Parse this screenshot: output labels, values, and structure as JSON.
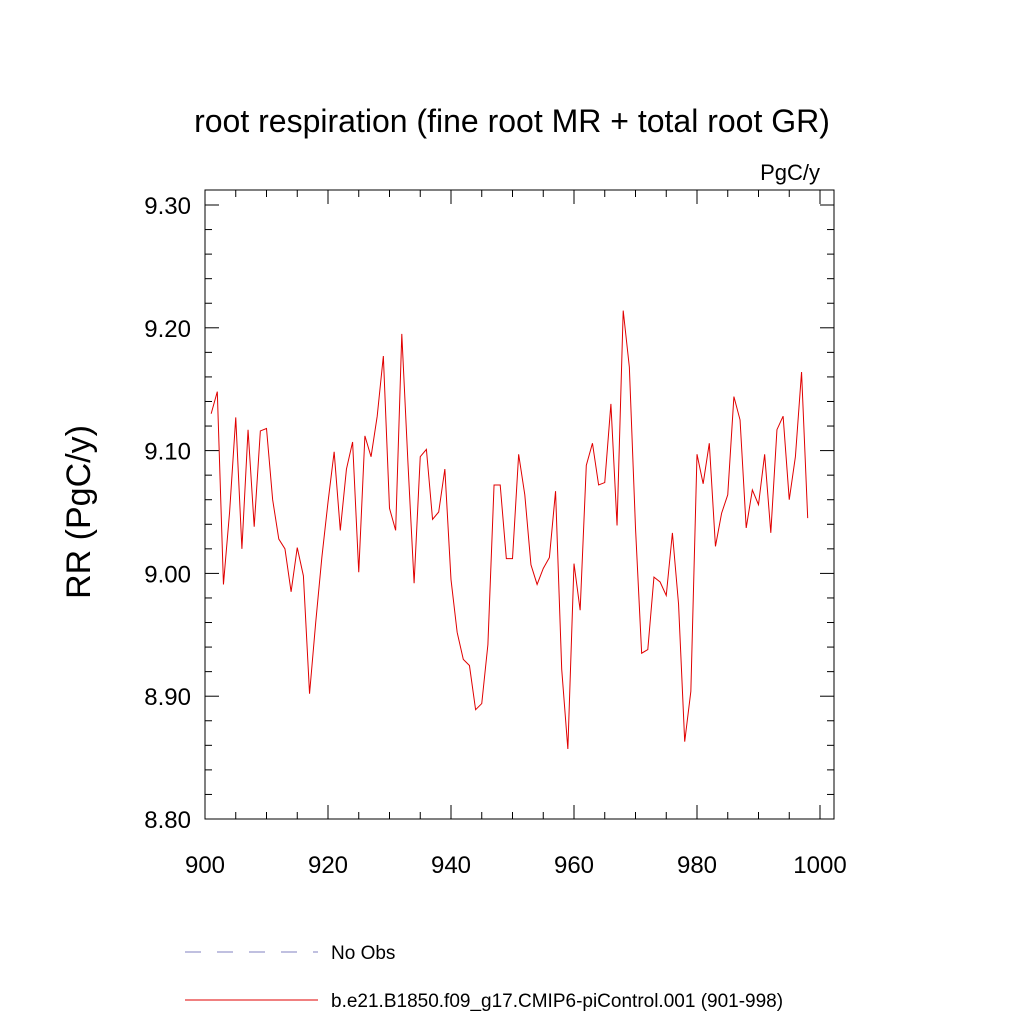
{
  "chart_data": {
    "type": "line",
    "title": "root respiration (fine root MR + total root GR)",
    "units": "PgC/y",
    "xlabel": "",
    "ylabel": "RR  (PgC/y)",
    "xlim": [
      900,
      1000
    ],
    "ylim": [
      8.8,
      9.3
    ],
    "xticks": [
      900,
      920,
      940,
      960,
      980,
      1000
    ],
    "xtick_labels": [
      "900",
      "920",
      "940",
      "960",
      "980",
      "1000"
    ],
    "yticks": [
      8.8,
      8.9,
      9.0,
      9.1,
      9.2,
      9.3
    ],
    "ytick_labels": [
      "8.80",
      "8.90",
      "9.00",
      "9.10",
      "9.20",
      "9.30"
    ],
    "grid": false,
    "legend_placement": "bottom-left",
    "series": [
      {
        "name": "No Obs",
        "color": "#8080c0",
        "style": "dashed",
        "x": [],
        "values": []
      },
      {
        "name": "b.e21.B1850.f09_g17.CMIP6-piControl.001 (901-998)",
        "color": "#e00000",
        "style": "solid",
        "x": [
          901,
          902,
          903,
          904,
          905,
          906,
          907,
          908,
          909,
          910,
          911,
          912,
          913,
          914,
          915,
          916,
          917,
          918,
          919,
          920,
          921,
          922,
          923,
          924,
          925,
          926,
          927,
          928,
          929,
          930,
          931,
          932,
          933,
          934,
          935,
          936,
          937,
          938,
          939,
          940,
          941,
          942,
          943,
          944,
          945,
          946,
          947,
          948,
          949,
          950,
          951,
          952,
          953,
          954,
          955,
          956,
          957,
          958,
          959,
          960,
          961,
          962,
          963,
          964,
          965,
          966,
          967,
          968,
          969,
          970,
          971,
          972,
          973,
          974,
          975,
          976,
          977,
          978,
          979,
          980,
          981,
          982,
          983,
          984,
          985,
          986,
          987,
          988,
          989,
          990,
          991,
          992,
          993,
          994,
          995,
          996,
          997,
          998
        ],
        "values": [
          9.13,
          9.148,
          8.991,
          9.05,
          9.127,
          9.02,
          9.117,
          9.038,
          9.116,
          9.118,
          9.06,
          9.028,
          9.02,
          8.985,
          9.021,
          8.998,
          8.902,
          8.96,
          9.013,
          9.058,
          9.099,
          9.035,
          9.085,
          9.107,
          9.001,
          9.112,
          9.095,
          9.128,
          9.177,
          9.053,
          9.035,
          9.195,
          9.09,
          8.992,
          9.095,
          9.101,
          9.044,
          9.05,
          9.085,
          8.995,
          8.952,
          8.93,
          8.925,
          8.889,
          8.894,
          8.942,
          9.072,
          9.072,
          9.012,
          9.012,
          9.097,
          9.064,
          9.007,
          8.991,
          9.004,
          9.013,
          9.067,
          8.922,
          8.857,
          9.008,
          8.97,
          9.088,
          9.106,
          9.072,
          9.074,
          9.138,
          9.039,
          9.214,
          9.168,
          9.037,
          8.935,
          8.938,
          8.997,
          8.993,
          8.982,
          9.033,
          8.975,
          8.863,
          8.904,
          9.097,
          9.073,
          9.106,
          9.022,
          9.049,
          9.064,
          9.144,
          9.125,
          9.037,
          9.068,
          9.056,
          9.097,
          9.033,
          9.117,
          9.128,
          9.06,
          9.095,
          9.164,
          9.045
        ]
      }
    ]
  }
}
